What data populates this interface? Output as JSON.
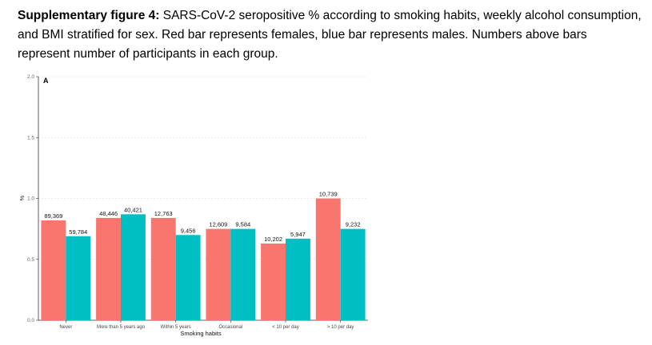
{
  "caption": {
    "bold": "Supplementary figure 4:",
    "text": " SARS-CoV-2 seropositive % according to smoking habits, weekly alcohol consumption, and BMI stratified for sex. Red bar represents females, blue bar represents males. Numbers above bars represent number of participants in each group."
  },
  "chart_data": {
    "type": "bar",
    "panel_label": "A",
    "xlabel": "Smoking habits",
    "ylabel": "%",
    "ylim": [
      0,
      2.0
    ],
    "yticks": [
      "0.0",
      "0.5",
      "1.0",
      "1.5",
      "2.0"
    ],
    "grid": true,
    "categories": [
      "Never",
      "More than 5 years ago",
      "Within 5 years",
      "Occasional",
      "< 10 per day",
      "> 10 per day"
    ],
    "series": [
      {
        "color": "#F8766D",
        "values": [
          0.82,
          0.84,
          0.84,
          0.75,
          0.63,
          1.0
        ],
        "labels": [
          "89,369",
          "48,446",
          "12,763",
          "12,609",
          "10,202",
          "10,739"
        ]
      },
      {
        "color": "#00BFC4",
        "values": [
          0.69,
          0.87,
          0.7,
          0.75,
          0.67,
          0.75
        ],
        "labels": [
          "59,784",
          "40,421",
          "9,456",
          "9,584",
          "5,947",
          "9,232"
        ]
      }
    ]
  }
}
